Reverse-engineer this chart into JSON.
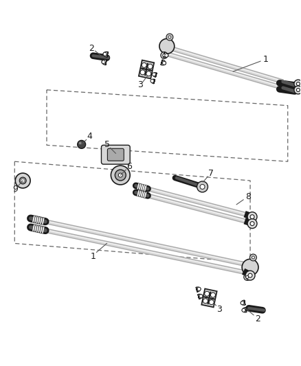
{
  "background_color": "#ffffff",
  "line_color": "#1a1a1a",
  "dashed_color": "#666666",
  "label_color": "#000000",
  "figsize": [
    4.38,
    5.33
  ],
  "dpi": 100,
  "shaft_dark": "#1a1a1a",
  "shaft_mid": "#888888",
  "shaft_light": "#dddddd",
  "shaft_white": "#ffffff"
}
